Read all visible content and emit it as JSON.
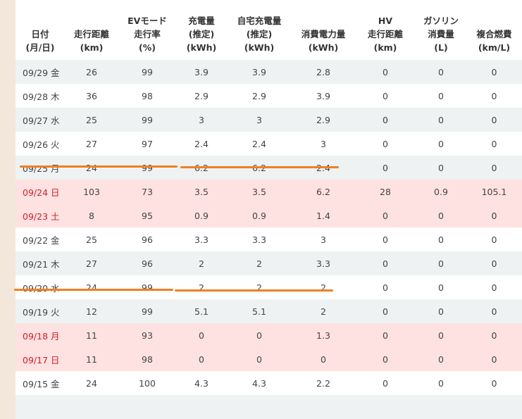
{
  "headers": [
    [
      "日付",
      "(月/日)"
    ],
    [
      "走行距離",
      "(km)"
    ],
    [
      "EVモード",
      "走行率",
      "(%)"
    ],
    [
      "充電量",
      "(推定)",
      "(kWh)"
    ],
    [
      "自宅充電量",
      "(推定)",
      "(kWh)"
    ],
    [
      "消費電力量",
      "(kWh)"
    ],
    [
      "HV",
      "走行距離",
      "(km)"
    ],
    [
      "ガソリン",
      "消費量",
      "(L)"
    ],
    [
      "複合燃費",
      "(km/L)"
    ]
  ],
  "rows": [
    {
      "date": "09/29 金",
      "holiday": false,
      "values": [
        "26",
        "99",
        "3.9",
        "3.9",
        "2.8",
        "0",
        "0",
        "0"
      ]
    },
    {
      "date": "09/28 木",
      "holiday": false,
      "values": [
        "36",
        "98",
        "2.9",
        "2.9",
        "3.9",
        "0",
        "0",
        "0"
      ]
    },
    {
      "date": "09/27 水",
      "holiday": false,
      "values": [
        "25",
        "99",
        "3",
        "3",
        "2.9",
        "0",
        "0",
        "0"
      ]
    },
    {
      "date": "09/26 火",
      "holiday": false,
      "values": [
        "27",
        "97",
        "2.4",
        "2.4",
        "3",
        "0",
        "0",
        "0"
      ]
    },
    {
      "date": "09/25 月",
      "holiday": false,
      "underlined": true,
      "values": [
        "24",
        "99",
        "6.2",
        "6.2",
        "2.4",
        "0",
        "0",
        "0"
      ]
    },
    {
      "date": "09/24 日",
      "holiday": true,
      "values": [
        "103",
        "73",
        "3.5",
        "3.5",
        "6.2",
        "28",
        "0.9",
        "105.1"
      ]
    },
    {
      "date": "09/23 土",
      "holiday": true,
      "values": [
        "8",
        "95",
        "0.9",
        "0.9",
        "1.4",
        "0",
        "0",
        "0"
      ]
    },
    {
      "date": "09/22 金",
      "holiday": false,
      "values": [
        "25",
        "96",
        "3.3",
        "3.3",
        "3",
        "0",
        "0",
        "0"
      ]
    },
    {
      "date": "09/21 木",
      "holiday": false,
      "values": [
        "27",
        "96",
        "2",
        "2",
        "3.3",
        "0",
        "0",
        "0"
      ]
    },
    {
      "date": "09/20 水",
      "holiday": false,
      "underlined": true,
      "values": [
        "24",
        "99",
        "2",
        "2",
        "2",
        "0",
        "0",
        "0"
      ]
    },
    {
      "date": "09/19 火",
      "holiday": false,
      "values": [
        "12",
        "99",
        "5.1",
        "5.1",
        "2",
        "0",
        "0",
        "0"
      ]
    },
    {
      "date": "09/18 月",
      "holiday": true,
      "values": [
        "11",
        "93",
        "0",
        "0",
        "1.3",
        "0",
        "0",
        "0"
      ]
    },
    {
      "date": "09/17 日",
      "holiday": true,
      "values": [
        "11",
        "98",
        "0",
        "0",
        "0",
        "0",
        "0",
        "0"
      ]
    },
    {
      "date": "09/15 金",
      "holiday": false,
      "values": [
        "24",
        "100",
        "4.3",
        "4.3",
        "2.2",
        "0",
        "0",
        "0"
      ]
    }
  ],
  "colors": {
    "holiday_bg": "#fde2e1",
    "holiday_text": "#d0202a",
    "stripe": "#eef2f3",
    "annotation": "#f07f23"
  }
}
